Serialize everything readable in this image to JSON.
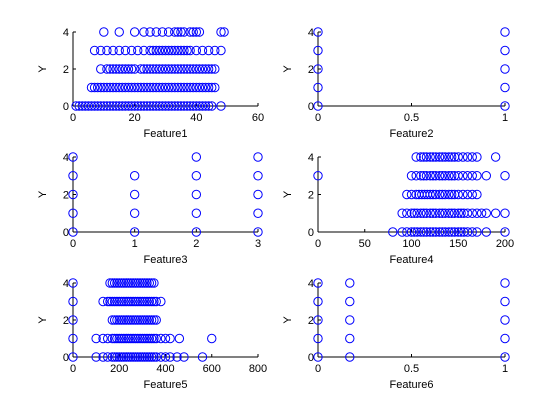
{
  "figure": {
    "background": "#ffffff",
    "marker_color": "#0000ff",
    "axis_color": "#000000"
  },
  "chart_data": [
    {
      "type": "scatter",
      "xlabel": "Feature1",
      "ylabel": "Y",
      "xlim": [
        0,
        60
      ],
      "ylim": [
        0,
        4
      ],
      "xticks": [
        0,
        20,
        40,
        60
      ],
      "yticks": [
        0,
        2,
        4
      ],
      "points": {
        "0": [
          1,
          2,
          3,
          4,
          5,
          6,
          7,
          8,
          9,
          10,
          11,
          12,
          13,
          14,
          15,
          16,
          17,
          18,
          19,
          20,
          21,
          22,
          23,
          24,
          25,
          26,
          27,
          28,
          29,
          30,
          31,
          32,
          33,
          34,
          35,
          36,
          37,
          38,
          39,
          40,
          41,
          42,
          43,
          44,
          45,
          48
        ],
        "1": [
          6,
          7,
          8,
          9,
          10,
          11,
          12,
          13,
          14,
          15,
          16,
          17,
          18,
          19,
          20,
          21,
          22,
          23,
          24,
          25,
          26,
          27,
          28,
          29,
          30,
          31,
          32,
          33,
          34,
          35,
          36,
          37,
          38,
          39,
          40,
          41,
          42,
          43,
          44,
          45,
          46
        ],
        "2": [
          9,
          11,
          12,
          13,
          14,
          15,
          16,
          17,
          18,
          19,
          20,
          22,
          23,
          24,
          25,
          26,
          27,
          28,
          29,
          30,
          31,
          32,
          33,
          34,
          35,
          36,
          37,
          38,
          39,
          40,
          41,
          42,
          43,
          44,
          45,
          46
        ],
        "3": [
          7,
          9,
          11,
          13,
          15,
          17,
          19,
          21,
          23,
          25,
          26,
          27,
          28,
          29,
          30,
          31,
          32,
          33,
          34,
          35,
          36,
          37,
          38,
          40,
          42,
          44,
          46,
          48
        ],
        "4": [
          10,
          15,
          20,
          23,
          25,
          27,
          29,
          31,
          33,
          34,
          35,
          36,
          38,
          39,
          40,
          41,
          48,
          49
        ]
      }
    },
    {
      "type": "scatter",
      "xlabel": "Feature2",
      "ylabel": "Y",
      "xlim": [
        0,
        1
      ],
      "ylim": [
        0,
        4
      ],
      "xticks": [
        0,
        0.5,
        1
      ],
      "yticks": [
        0,
        2,
        4
      ],
      "points": {
        "0": [
          0,
          1
        ],
        "1": [
          0,
          1
        ],
        "2": [
          0,
          1
        ],
        "3": [
          0,
          1
        ],
        "4": [
          0,
          1
        ]
      }
    },
    {
      "type": "scatter",
      "xlabel": "Feature3",
      "ylabel": "Y",
      "xlim": [
        0,
        3
      ],
      "ylim": [
        0,
        4
      ],
      "xticks": [
        0,
        1,
        2,
        3
      ],
      "yticks": [
        0,
        2,
        4
      ],
      "points": {
        "0": [
          0,
          1,
          2,
          3
        ],
        "1": [
          0,
          1,
          2,
          3
        ],
        "2": [
          0,
          1,
          2,
          3
        ],
        "3": [
          0,
          1,
          2,
          3
        ],
        "4": [
          0,
          2,
          3
        ]
      }
    },
    {
      "type": "scatter",
      "xlabel": "Feature4",
      "ylabel": "Y",
      "xlim": [
        0,
        200
      ],
      "ylim": [
        0,
        4
      ],
      "xticks": [
        0,
        50,
        100,
        150,
        200
      ],
      "yticks": [
        0,
        2,
        4
      ],
      "points": {
        "0": [
          80,
          90,
          95,
          100,
          103,
          106,
          110,
          113,
          116,
          120,
          123,
          126,
          130,
          133,
          136,
          140,
          143,
          146,
          150,
          153,
          156,
          160,
          165,
          170,
          180,
          200
        ],
        "1": [
          90,
          95,
          100,
          103,
          106,
          110,
          113,
          116,
          120,
          123,
          126,
          130,
          133,
          136,
          140,
          143,
          146,
          150,
          153,
          156,
          160,
          165,
          170,
          175,
          180,
          190,
          200
        ],
        "2": [
          95,
          100,
          105,
          108,
          111,
          114,
          117,
          120,
          123,
          126,
          130,
          133,
          136,
          140,
          143,
          146,
          150,
          155,
          160,
          165,
          170
        ],
        "3": [
          0,
          100,
          105,
          110,
          113,
          116,
          120,
          123,
          126,
          130,
          133,
          136,
          140,
          143,
          146,
          150,
          155,
          160,
          165,
          170,
          180,
          200
        ],
        "4": [
          105,
          110,
          113,
          116,
          120,
          123,
          126,
          130,
          133,
          136,
          140,
          143,
          146,
          150,
          155,
          160,
          165,
          170,
          190
        ]
      }
    },
    {
      "type": "scatter",
      "xlabel": "Feature5",
      "ylabel": "Y",
      "xlim": [
        0,
        800
      ],
      "ylim": [
        0,
        4
      ],
      "xticks": [
        0,
        200,
        400,
        600,
        800
      ],
      "yticks": [
        0,
        2,
        4
      ],
      "points": {
        "0": [
          0,
          100,
          130,
          150,
          170,
          180,
          190,
          200,
          210,
          220,
          230,
          240,
          250,
          260,
          270,
          280,
          290,
          300,
          310,
          320,
          330,
          340,
          350,
          360,
          380,
          400,
          420,
          450,
          480,
          560
        ],
        "1": [
          0,
          100,
          130,
          150,
          170,
          180,
          190,
          200,
          210,
          220,
          230,
          240,
          250,
          260,
          270,
          280,
          290,
          300,
          310,
          320,
          330,
          340,
          350,
          360,
          380,
          400,
          420,
          460,
          600
        ],
        "2": [
          0,
          170,
          180,
          190,
          200,
          210,
          220,
          230,
          240,
          250,
          260,
          270,
          280,
          290,
          300,
          310,
          320,
          330,
          340,
          350,
          360
        ],
        "3": [
          0,
          130,
          150,
          160,
          170,
          180,
          190,
          200,
          210,
          220,
          230,
          240,
          250,
          260,
          270,
          280,
          290,
          300,
          310,
          320,
          330,
          340,
          350,
          360,
          380
        ],
        "4": [
          0,
          160,
          170,
          180,
          190,
          200,
          210,
          220,
          230,
          240,
          250,
          260,
          270,
          280,
          290,
          300,
          310,
          320,
          330,
          340,
          350
        ]
      }
    },
    {
      "type": "scatter",
      "xlabel": "Feature6",
      "ylabel": "Y",
      "xlim": [
        0,
        1
      ],
      "ylim": [
        0,
        4
      ],
      "xticks": [
        0,
        0.5,
        1
      ],
      "yticks": [
        0,
        2,
        4
      ],
      "points": {
        "0": [
          0,
          0.17,
          1
        ],
        "1": [
          0,
          0.17,
          1
        ],
        "2": [
          0,
          0.17,
          1
        ],
        "3": [
          0,
          0.17,
          1
        ],
        "4": [
          0,
          0.17,
          1
        ]
      }
    }
  ]
}
